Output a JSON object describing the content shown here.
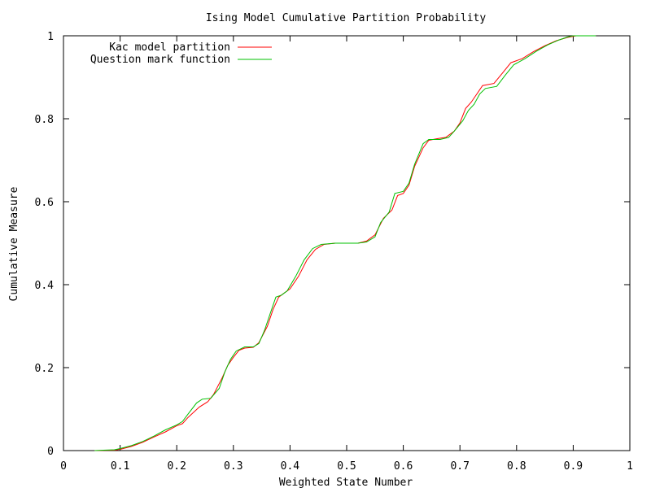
{
  "chart_data": {
    "type": "line",
    "title": "Ising Model Cumulative Partition Probability",
    "xlabel": "Weighted State Number",
    "ylabel": "Cumulative Measure",
    "xlim": [
      0,
      1
    ],
    "ylim": [
      0,
      1
    ],
    "xticks": [
      "0",
      "0.1",
      "0.2",
      "0.3",
      "0.4",
      "0.5",
      "0.6",
      "0.7",
      "0.8",
      "0.9",
      "1"
    ],
    "yticks": [
      "0",
      "0.2",
      "0.4",
      "0.6",
      "0.8",
      "1"
    ],
    "grid": false,
    "legend_position": "top-left",
    "series": [
      {
        "name": "Kac model partition",
        "color": "#ff0000",
        "points": [
          [
            0.055,
            0.0
          ],
          [
            0.09,
            0.001
          ],
          [
            0.1,
            0.003
          ],
          [
            0.12,
            0.01
          ],
          [
            0.14,
            0.02
          ],
          [
            0.16,
            0.033
          ],
          [
            0.18,
            0.045
          ],
          [
            0.2,
            0.06
          ],
          [
            0.21,
            0.065
          ],
          [
            0.22,
            0.08
          ],
          [
            0.24,
            0.105
          ],
          [
            0.255,
            0.118
          ],
          [
            0.265,
            0.135
          ],
          [
            0.28,
            0.175
          ],
          [
            0.29,
            0.205
          ],
          [
            0.3,
            0.225
          ],
          [
            0.31,
            0.242
          ],
          [
            0.32,
            0.247
          ],
          [
            0.335,
            0.249
          ],
          [
            0.345,
            0.26
          ],
          [
            0.36,
            0.3
          ],
          [
            0.37,
            0.34
          ],
          [
            0.38,
            0.37
          ],
          [
            0.39,
            0.38
          ],
          [
            0.4,
            0.39
          ],
          [
            0.415,
            0.42
          ],
          [
            0.43,
            0.46
          ],
          [
            0.445,
            0.485
          ],
          [
            0.46,
            0.497
          ],
          [
            0.48,
            0.5
          ],
          [
            0.52,
            0.5
          ],
          [
            0.535,
            0.505
          ],
          [
            0.55,
            0.52
          ],
          [
            0.565,
            0.56
          ],
          [
            0.58,
            0.58
          ],
          [
            0.59,
            0.615
          ],
          [
            0.6,
            0.62
          ],
          [
            0.61,
            0.64
          ],
          [
            0.62,
            0.685
          ],
          [
            0.635,
            0.73
          ],
          [
            0.645,
            0.748
          ],
          [
            0.66,
            0.752
          ],
          [
            0.675,
            0.755
          ],
          [
            0.69,
            0.77
          ],
          [
            0.7,
            0.79
          ],
          [
            0.71,
            0.825
          ],
          [
            0.72,
            0.84
          ],
          [
            0.73,
            0.86
          ],
          [
            0.74,
            0.88
          ],
          [
            0.76,
            0.885
          ],
          [
            0.775,
            0.91
          ],
          [
            0.79,
            0.935
          ],
          [
            0.81,
            0.945
          ],
          [
            0.83,
            0.962
          ],
          [
            0.85,
            0.976
          ],
          [
            0.87,
            0.988
          ],
          [
            0.89,
            0.996
          ],
          [
            0.905,
            1.0
          ],
          [
            0.94,
            1.0
          ]
        ]
      },
      {
        "name": "Question mark function",
        "color": "#00c000",
        "points": [
          [
            0.055,
            0.0
          ],
          [
            0.09,
            0.002
          ],
          [
            0.1,
            0.005
          ],
          [
            0.12,
            0.012
          ],
          [
            0.14,
            0.022
          ],
          [
            0.16,
            0.035
          ],
          [
            0.18,
            0.05
          ],
          [
            0.2,
            0.062
          ],
          [
            0.21,
            0.07
          ],
          [
            0.22,
            0.088
          ],
          [
            0.235,
            0.115
          ],
          [
            0.245,
            0.124
          ],
          [
            0.26,
            0.126
          ],
          [
            0.275,
            0.15
          ],
          [
            0.285,
            0.19
          ],
          [
            0.295,
            0.22
          ],
          [
            0.305,
            0.24
          ],
          [
            0.32,
            0.25
          ],
          [
            0.335,
            0.25
          ],
          [
            0.345,
            0.258
          ],
          [
            0.355,
            0.29
          ],
          [
            0.365,
            0.33
          ],
          [
            0.375,
            0.37
          ],
          [
            0.385,
            0.375
          ],
          [
            0.395,
            0.385
          ],
          [
            0.41,
            0.42
          ],
          [
            0.425,
            0.46
          ],
          [
            0.44,
            0.487
          ],
          [
            0.455,
            0.497
          ],
          [
            0.48,
            0.5
          ],
          [
            0.52,
            0.5
          ],
          [
            0.535,
            0.503
          ],
          [
            0.55,
            0.515
          ],
          [
            0.56,
            0.55
          ],
          [
            0.575,
            0.575
          ],
          [
            0.585,
            0.62
          ],
          [
            0.6,
            0.625
          ],
          [
            0.61,
            0.645
          ],
          [
            0.62,
            0.69
          ],
          [
            0.635,
            0.74
          ],
          [
            0.645,
            0.75
          ],
          [
            0.665,
            0.75
          ],
          [
            0.68,
            0.755
          ],
          [
            0.69,
            0.77
          ],
          [
            0.705,
            0.795
          ],
          [
            0.715,
            0.82
          ],
          [
            0.725,
            0.835
          ],
          [
            0.735,
            0.86
          ],
          [
            0.745,
            0.873
          ],
          [
            0.765,
            0.878
          ],
          [
            0.78,
            0.905
          ],
          [
            0.795,
            0.93
          ],
          [
            0.815,
            0.945
          ],
          [
            0.835,
            0.963
          ],
          [
            0.855,
            0.978
          ],
          [
            0.875,
            0.99
          ],
          [
            0.89,
            0.997
          ],
          [
            0.9,
            1.0
          ],
          [
            0.94,
            1.0
          ]
        ]
      }
    ]
  }
}
